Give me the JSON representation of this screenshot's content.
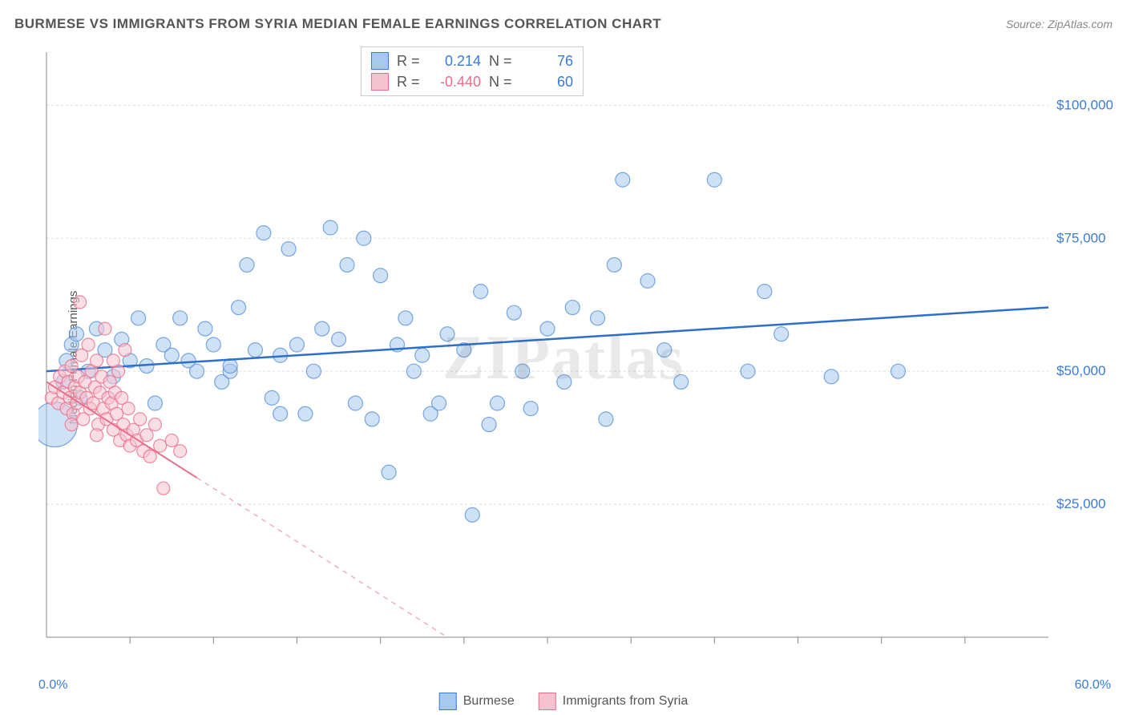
{
  "header": {
    "title": "BURMESE VS IMMIGRANTS FROM SYRIA MEDIAN FEMALE EARNINGS CORRELATION CHART",
    "source": "Source: ZipAtlas.com"
  },
  "chart": {
    "type": "scatter",
    "background_color": "#ffffff",
    "grid_color": "#dddddd",
    "border_color": "#888888",
    "ylabel": "Median Female Earnings",
    "ylabel_fontsize": 15,
    "xlim": [
      0,
      60
    ],
    "ylim": [
      0,
      110000
    ],
    "xaxis_min_label": "0.0%",
    "xaxis_max_label": "60.0%",
    "xaxis_label_color": "#3a7bd5",
    "yticks": [
      {
        "value": 25000,
        "label": "$25,000"
      },
      {
        "value": 50000,
        "label": "$50,000"
      },
      {
        "value": 75000,
        "label": "$75,000"
      },
      {
        "value": 100000,
        "label": "$100,000"
      }
    ],
    "ytick_color": "#3a7bd5",
    "xticks_minor": [
      5,
      10,
      15,
      20,
      25,
      30,
      35,
      40,
      45,
      50,
      55
    ],
    "watermark": "ZIPatlas",
    "stats_legend": {
      "rows": [
        {
          "swatch_fill": "#a8c8ec",
          "swatch_border": "#3a7bd5",
          "r_label": "R =",
          "r_value": "0.214",
          "r_color": "#3a7bd5",
          "n_label": "N =",
          "n_value": "76",
          "n_color": "#3a7bd5"
        },
        {
          "swatch_fill": "#f5c2cf",
          "swatch_border": "#e86e8a",
          "r_label": "R =",
          "r_value": "-0.440",
          "r_color": "#e86e8a",
          "n_label": "N =",
          "n_value": "60",
          "n_color": "#3a7bd5"
        }
      ]
    },
    "series_legend": [
      {
        "swatch_fill": "#a8c8ec",
        "swatch_border": "#3a7bd5",
        "label": "Burmese"
      },
      {
        "swatch_fill": "#f5c2cf",
        "swatch_border": "#e86e8a",
        "label": "Immigrants from Syria"
      }
    ],
    "series": [
      {
        "name": "Burmese",
        "marker_fill": "#a8c8ec",
        "marker_border": "#5a92d8",
        "marker_opacity": 0.55,
        "marker_radius": 9,
        "trend_line": {
          "x1": 0,
          "y1": 50000,
          "x2": 60,
          "y2": 62000,
          "color": "#2e6fc9",
          "width": 2.5,
          "solid_until_x": 60
        },
        "points": [
          [
            0.5,
            40000,
            28
          ],
          [
            1,
            48000,
            9
          ],
          [
            1.2,
            52000,
            9
          ],
          [
            1.5,
            55000,
            9
          ],
          [
            1.8,
            57000,
            9
          ],
          [
            2,
            45000,
            9
          ],
          [
            2.5,
            50000,
            9
          ],
          [
            3,
            58000,
            9
          ],
          [
            3.5,
            54000,
            9
          ],
          [
            4,
            49000,
            9
          ],
          [
            4.5,
            56000,
            9
          ],
          [
            5,
            52000,
            9
          ],
          [
            5.5,
            60000,
            9
          ],
          [
            6,
            51000,
            9
          ],
          [
            6.5,
            44000,
            9
          ],
          [
            7,
            55000,
            9
          ],
          [
            7.5,
            53000,
            9
          ],
          [
            8,
            60000,
            9
          ],
          [
            8.5,
            52000,
            9
          ],
          [
            9,
            50000,
            9
          ],
          [
            9.5,
            58000,
            9
          ],
          [
            10,
            55000,
            9
          ],
          [
            10.5,
            48000,
            9
          ],
          [
            11,
            50000,
            9
          ],
          [
            11.5,
            62000,
            9
          ],
          [
            12,
            70000,
            9
          ],
          [
            12.5,
            54000,
            9
          ],
          [
            13,
            76000,
            9
          ],
          [
            13.5,
            45000,
            9
          ],
          [
            14,
            53000,
            9
          ],
          [
            14.5,
            73000,
            9
          ],
          [
            15,
            55000,
            9
          ],
          [
            15.5,
            42000,
            9
          ],
          [
            16,
            50000,
            9
          ],
          [
            16.5,
            58000,
            9
          ],
          [
            17,
            77000,
            9
          ],
          [
            17.5,
            56000,
            9
          ],
          [
            18,
            70000,
            9
          ],
          [
            18.5,
            44000,
            9
          ],
          [
            19,
            75000,
            9
          ],
          [
            19.5,
            41000,
            9
          ],
          [
            20,
            68000,
            9
          ],
          [
            20.5,
            31000,
            9
          ],
          [
            21,
            55000,
            9
          ],
          [
            21.5,
            60000,
            9
          ],
          [
            22,
            50000,
            9
          ],
          [
            22.5,
            53000,
            9
          ],
          [
            23,
            42000,
            9
          ],
          [
            23.5,
            44000,
            9
          ],
          [
            24,
            57000,
            9
          ],
          [
            25,
            54000,
            9
          ],
          [
            25.5,
            23000,
            9
          ],
          [
            26,
            65000,
            9
          ],
          [
            26.5,
            40000,
            9
          ],
          [
            27,
            44000,
            9
          ],
          [
            28,
            61000,
            9
          ],
          [
            28.5,
            50000,
            9
          ],
          [
            29,
            43000,
            9
          ],
          [
            30,
            58000,
            9
          ],
          [
            31,
            48000,
            9
          ],
          [
            31.5,
            62000,
            9
          ],
          [
            33,
            60000,
            9
          ],
          [
            33.5,
            41000,
            9
          ],
          [
            34,
            70000,
            9
          ],
          [
            34.5,
            86000,
            9
          ],
          [
            36,
            67000,
            9
          ],
          [
            37,
            54000,
            9
          ],
          [
            38,
            48000,
            9
          ],
          [
            40,
            86000,
            9
          ],
          [
            42,
            50000,
            9
          ],
          [
            43,
            65000,
            9
          ],
          [
            44,
            57000,
            9
          ],
          [
            47,
            49000,
            9
          ],
          [
            51,
            50000,
            9
          ],
          [
            11,
            51000,
            9
          ],
          [
            14,
            42000,
            9
          ]
        ]
      },
      {
        "name": "Immigrants from Syria",
        "marker_fill": "#f5c2cf",
        "marker_border": "#e86e8a",
        "marker_opacity": 0.55,
        "marker_radius": 8,
        "trend_line": {
          "x1": 0,
          "y1": 48000,
          "x2": 24,
          "y2": 0,
          "color": "#e86e8a",
          "width": 2,
          "solid_until_x": 9
        },
        "points": [
          [
            0.3,
            45000,
            8
          ],
          [
            0.5,
            47000,
            8
          ],
          [
            0.7,
            44000,
            8
          ],
          [
            0.8,
            49000,
            8
          ],
          [
            1,
            46000,
            8
          ],
          [
            1.1,
            50000,
            8
          ],
          [
            1.2,
            43000,
            8
          ],
          [
            1.3,
            48000,
            8
          ],
          [
            1.4,
            45000,
            8
          ],
          [
            1.5,
            51000,
            8
          ],
          [
            1.6,
            42000,
            8
          ],
          [
            1.7,
            47000,
            8
          ],
          [
            1.8,
            44000,
            8
          ],
          [
            1.9,
            49000,
            8
          ],
          [
            2,
            46000,
            8
          ],
          [
            2.1,
            53000,
            8
          ],
          [
            2.2,
            41000,
            8
          ],
          [
            2.3,
            48000,
            8
          ],
          [
            2.4,
            45000,
            8
          ],
          [
            2.5,
            55000,
            8
          ],
          [
            2.6,
            43000,
            8
          ],
          [
            2.7,
            50000,
            8
          ],
          [
            2.8,
            44000,
            8
          ],
          [
            2.9,
            47000,
            8
          ],
          [
            3,
            52000,
            8
          ],
          [
            3.1,
            40000,
            8
          ],
          [
            3.2,
            46000,
            8
          ],
          [
            3.3,
            49000,
            8
          ],
          [
            3.4,
            43000,
            8
          ],
          [
            3.5,
            58000,
            8
          ],
          [
            3.6,
            41000,
            8
          ],
          [
            3.7,
            45000,
            8
          ],
          [
            3.8,
            48000,
            8
          ],
          [
            3.9,
            44000,
            8
          ],
          [
            4,
            39000,
            8
          ],
          [
            4.1,
            46000,
            8
          ],
          [
            4.2,
            42000,
            8
          ],
          [
            4.3,
            50000,
            8
          ],
          [
            4.4,
            37000,
            8
          ],
          [
            4.5,
            45000,
            8
          ],
          [
            4.6,
            40000,
            8
          ],
          [
            4.7,
            54000,
            8
          ],
          [
            4.8,
            38000,
            8
          ],
          [
            4.9,
            43000,
            8
          ],
          [
            5,
            36000,
            8
          ],
          [
            5.2,
            39000,
            8
          ],
          [
            5.4,
            37000,
            8
          ],
          [
            5.6,
            41000,
            8
          ],
          [
            5.8,
            35000,
            8
          ],
          [
            6,
            38000,
            8
          ],
          [
            6.2,
            34000,
            8
          ],
          [
            6.5,
            40000,
            8
          ],
          [
            6.8,
            36000,
            8
          ],
          [
            7,
            28000,
            8
          ],
          [
            7.5,
            37000,
            8
          ],
          [
            8,
            35000,
            8
          ],
          [
            2,
            63000,
            8
          ],
          [
            1.5,
            40000,
            8
          ],
          [
            3,
            38000,
            8
          ],
          [
            4,
            52000,
            8
          ]
        ]
      }
    ]
  }
}
